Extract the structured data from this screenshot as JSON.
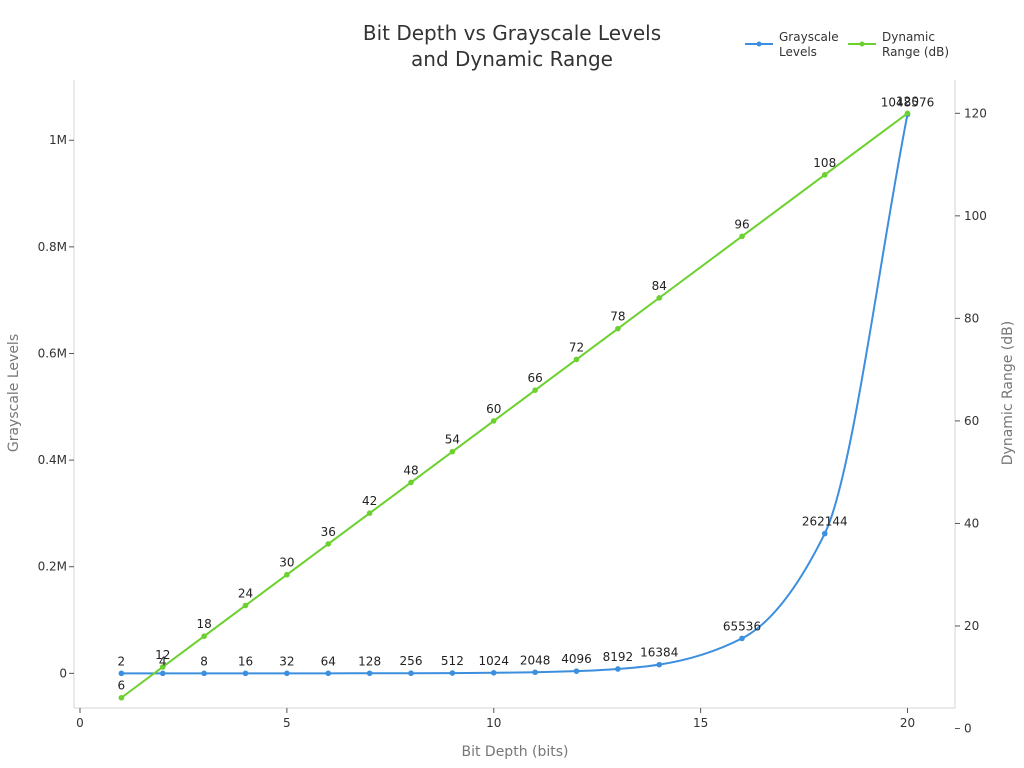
{
  "chart_data": {
    "type": "line",
    "title_lines": [
      "Bit Depth vs Grayscale Levels",
      "and Dynamic Range"
    ],
    "xlabel": "Bit Depth (bits)",
    "ylabel_left": "Grayscale Levels",
    "ylabel_right": "Dynamic Range (dB)",
    "xlim": [
      0,
      21
    ],
    "ylim_left": [
      -65000,
      1113000
    ],
    "ylim_right": [
      4,
      126.5
    ],
    "x_ticks": [
      0,
      5,
      10,
      15,
      20
    ],
    "y_left_ticks": [
      0,
      200000,
      400000,
      600000,
      800000,
      1000000
    ],
    "y_left_tick_labels": [
      "0",
      "0.2M",
      "0.4M",
      "0.6M",
      "0.8M",
      "1M"
    ],
    "y_right_ticks": [
      0,
      20,
      40,
      60,
      80,
      100,
      120
    ],
    "grid": false,
    "legend_position": "top-right",
    "series": [
      {
        "name": "Grayscale Levels",
        "legend_lines": [
          "Grayscale",
          "Levels"
        ],
        "axis": "left",
        "color": "#3b8fde",
        "curve": "smooth",
        "x": [
          1,
          2,
          3,
          4,
          5,
          6,
          7,
          8,
          9,
          10,
          11,
          12,
          13,
          14,
          16,
          18,
          20
        ],
        "values": [
          2,
          4,
          8,
          16,
          32,
          64,
          128,
          256,
          512,
          1024,
          2048,
          4096,
          8192,
          16384,
          65536,
          262144,
          1048576
        ],
        "labels": [
          "2",
          "4",
          "8",
          "16",
          "32",
          "64",
          "128",
          "256",
          "512",
          "1024",
          "2048",
          "4096",
          "8192",
          "16384",
          "65536",
          "262144",
          "1048576"
        ]
      },
      {
        "name": "Dynamic Range (dB)",
        "legend_lines": [
          "Dynamic",
          "Range (dB)"
        ],
        "axis": "right",
        "color": "#6bd12e",
        "curve": "linear",
        "x": [
          1,
          2,
          3,
          4,
          5,
          6,
          7,
          8,
          9,
          10,
          11,
          12,
          13,
          14,
          16,
          18,
          20
        ],
        "values": [
          6,
          12,
          18,
          24,
          30,
          36,
          42,
          48,
          54,
          60,
          66,
          72,
          78,
          84,
          96,
          108,
          120
        ],
        "labels": [
          "6",
          "12",
          "18",
          "24",
          "30",
          "36",
          "42",
          "48",
          "54",
          "60",
          "66",
          "72",
          "78",
          "84",
          "96",
          "108",
          "120"
        ]
      }
    ]
  }
}
